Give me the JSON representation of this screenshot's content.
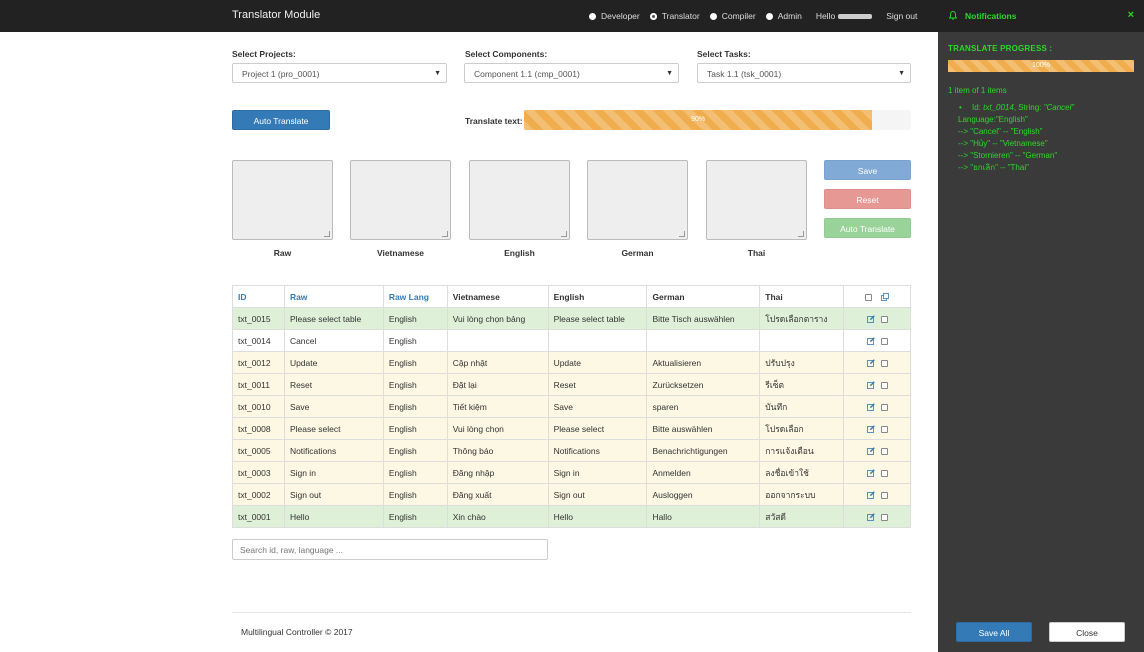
{
  "header": {
    "title": "Translator Module",
    "roles": [
      "Developer",
      "Translator",
      "Compiler",
      "Admin"
    ],
    "selected_role": "Translator",
    "hello": "Hello",
    "signout": "Sign out"
  },
  "notifications": {
    "title": "Notifications",
    "close_x": "×",
    "progress_label": "TRANSLATE PROGRESS :",
    "progress_text": "100%",
    "progress_fraction": 1.0,
    "items_count": "1 item of 1 items",
    "log_line1_prefix": "Id: ",
    "log_id": "txt_0014",
    "log_line1_mid": ", String: ",
    "log_string": "\"Cancel\"",
    "log_line2": "Language:\"English\"",
    "log_lines": [
      "--> \"Cancel\" -- \"English\"",
      "--> \"Hủy\" -- \"Vietnamese\"",
      "--> \"Stornieren\" -- \"German\"",
      "--> \"ยกเลิก\" -- \"Thai\""
    ],
    "save_all": "Save All",
    "close": "Close"
  },
  "selectors": {
    "projects_label": "Select Projects:",
    "projects_value": "Project 1 (pro_0001)",
    "components_label": "Select Components:",
    "components_value": "Component 1.1 (cmp_0001)",
    "tasks_label": "Select Tasks:",
    "tasks_value": "Task 1.1 (tsk_0001)"
  },
  "translate": {
    "auto_translate": "Auto Translate",
    "text_label": "Translate text:",
    "progress_text": "90%",
    "progress_fraction": 0.9
  },
  "editor": {
    "labels": [
      "Raw",
      "Vietnamese",
      "English",
      "German",
      "Thai"
    ],
    "save": "Save",
    "reset": "Reset",
    "auto_translate": "Auto Translate"
  },
  "table": {
    "headers": [
      "ID",
      "Raw",
      "Raw Lang",
      "Vietnamese",
      "English",
      "German",
      "Thai"
    ],
    "rows": [
      {
        "style": "green",
        "cells": [
          "txt_0015",
          "Please select table",
          "English",
          "Vui lòng chọn bảng",
          "Please select table",
          "Bitte Tisch auswählen",
          "โปรดเลือกตาราง"
        ]
      },
      {
        "style": "white",
        "cells": [
          "txt_0014",
          "Cancel",
          "English",
          "",
          "",
          "",
          ""
        ]
      },
      {
        "style": "yellow",
        "cells": [
          "txt_0012",
          "Update",
          "English",
          "Cập nhật",
          "Update",
          "Aktualisieren",
          "ปรับปรุง"
        ]
      },
      {
        "style": "yellow",
        "cells": [
          "txt_0011",
          "Reset",
          "English",
          "Đặt lại",
          "Reset",
          "Zurücksetzen",
          "รีเซ็ต"
        ]
      },
      {
        "style": "yellow",
        "cells": [
          "txt_0010",
          "Save",
          "English",
          "Tiết kiệm",
          "Save",
          "sparen",
          "บันทึก"
        ]
      },
      {
        "style": "yellow",
        "cells": [
          "txt_0008",
          "Please select",
          "English",
          "Vui lòng chọn",
          "Please select",
          "Bitte auswählen",
          "โปรดเลือก"
        ]
      },
      {
        "style": "yellow",
        "cells": [
          "txt_0005",
          "Notifications",
          "English",
          "Thông báo",
          "Notifications",
          "Benachrichtigungen",
          "การแจ้งเตือน"
        ]
      },
      {
        "style": "yellow",
        "cells": [
          "txt_0003",
          "Sign in",
          "English",
          "Đăng nhập",
          "Sign in",
          "Anmelden",
          "ลงชื่อเข้าใช้"
        ]
      },
      {
        "style": "yellow",
        "cells": [
          "txt_0002",
          "Sign out",
          "English",
          "Đăng xuất",
          "Sign out",
          "Ausloggen",
          "ออกจากระบบ"
        ]
      },
      {
        "style": "green",
        "cells": [
          "txt_0001",
          "Hello",
          "English",
          "Xin chào",
          "Hello",
          "Hallo",
          "สวัสดี"
        ]
      }
    ]
  },
  "search": {
    "placeholder": "Search id, raw, language ..."
  },
  "footer": {
    "text": "Multilingual Controller © 2017"
  },
  "colors": {
    "accent": "#337ab7",
    "progress": "#f0ad4e",
    "notify_green": "#2bd82b"
  }
}
